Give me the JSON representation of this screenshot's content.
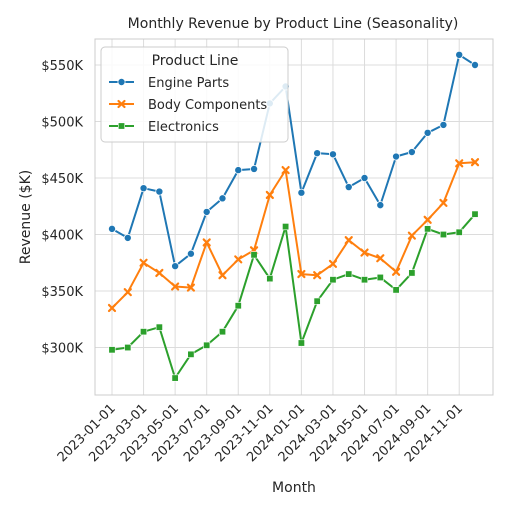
{
  "chart_data": {
    "type": "line",
    "title": "Monthly Revenue by Product Line (Seasonality)",
    "xlabel": "Month",
    "ylabel": "Revenue ($K)",
    "legend_title": "Product Line",
    "legend_placement": "top-left",
    "grid": true,
    "ylim": [
      258,
      573
    ],
    "x": [
      "2023-01-01",
      "2023-02-01",
      "2023-03-01",
      "2023-04-01",
      "2023-05-01",
      "2023-06-01",
      "2023-07-01",
      "2023-08-01",
      "2023-09-01",
      "2023-10-01",
      "2023-11-01",
      "2023-12-01",
      "2024-01-01",
      "2024-02-01",
      "2024-03-01",
      "2024-04-01",
      "2024-05-01",
      "2024-06-01",
      "2024-07-01",
      "2024-08-01",
      "2024-09-01",
      "2024-10-01",
      "2024-11-01",
      "2024-12-01"
    ],
    "x_tick_labels": [
      "2023-01-01",
      "2023-03-01",
      "2023-05-01",
      "2023-07-01",
      "2023-09-01",
      "2023-11-01",
      "2024-01-01",
      "2024-03-01",
      "2024-05-01",
      "2024-07-01",
      "2024-09-01",
      "2024-11-01"
    ],
    "y_ticks": [
      300,
      350,
      400,
      450,
      500,
      550
    ],
    "y_tick_labels": [
      "$300K",
      "$350K",
      "$400K",
      "$450K",
      "$500K",
      "$550K"
    ],
    "series": [
      {
        "name": "Engine Parts",
        "color": "#1f77b4",
        "marker": "circle",
        "values": [
          405,
          397,
          441,
          438,
          372,
          383,
          420,
          432,
          457,
          458,
          516,
          531,
          437,
          472,
          471,
          442,
          450,
          426,
          469,
          473,
          490,
          497,
          559,
          550
        ]
      },
      {
        "name": "Body Components",
        "color": "#ff7f0e",
        "marker": "x",
        "values": [
          335,
          349,
          375,
          366,
          354,
          353,
          393,
          364,
          378,
          386,
          435,
          457,
          365,
          364,
          374,
          395,
          384,
          379,
          367,
          399,
          413,
          428,
          463,
          464
        ]
      },
      {
        "name": "Electronics",
        "color": "#2ca02c",
        "marker": "square",
        "values": [
          298,
          300,
          314,
          318,
          273,
          294,
          302,
          314,
          337,
          382,
          361,
          407,
          304,
          341,
          360,
          365,
          360,
          362,
          351,
          366,
          405,
          400,
          402,
          418
        ]
      }
    ]
  }
}
